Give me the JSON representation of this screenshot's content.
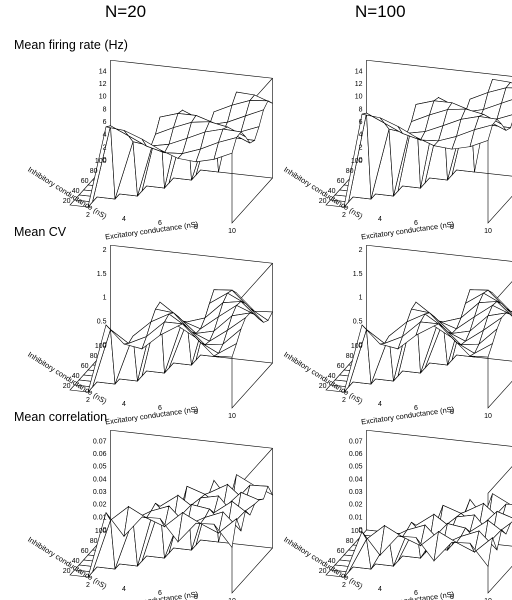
{
  "columns": [
    "N=20",
    "N=100"
  ],
  "rows": [
    {
      "title": "Mean firing rate (Hz)",
      "zticks": [
        "0",
        "2",
        "4",
        "6",
        "8",
        "10",
        "12",
        "14"
      ],
      "zmax": 15
    },
    {
      "title": "Mean CV",
      "zticks": [
        "0",
        "0.5",
        "1",
        "1.5",
        "2"
      ],
      "zmax": 2
    },
    {
      "title": "Mean correlation",
      "zticks": [
        "0",
        "0.01",
        "0.02",
        "0.03",
        "0.04",
        "0.05",
        "0.06",
        "0.07"
      ],
      "zmax": 0.075
    }
  ],
  "axes": {
    "x_label": "Excitatory conductance (nS)",
    "y_label": "Inhibitory conductance (nS)",
    "x_ticks": [
      "2",
      "4",
      "6",
      "8",
      "10"
    ],
    "y_ticks": [
      "20",
      "40",
      "60",
      "80",
      "100"
    ]
  },
  "chart_data": [
    {
      "type": "surface",
      "panel": "N=20 firing",
      "z": "rate",
      "grid": "excitatory x inhibitory",
      "values_note": "plateau ~12-14 Hz for high excitation/low inhibition"
    },
    {
      "type": "surface",
      "panel": "N=100 firing",
      "z": "rate"
    },
    {
      "type": "surface",
      "panel": "N=20 CV",
      "z": "cv"
    },
    {
      "type": "surface",
      "panel": "N=100 CV",
      "z": "cv"
    },
    {
      "type": "surface",
      "panel": "N=20 correlation",
      "z": "corr"
    },
    {
      "type": "surface",
      "panel": "N=100 correlation",
      "z": "corr"
    }
  ]
}
